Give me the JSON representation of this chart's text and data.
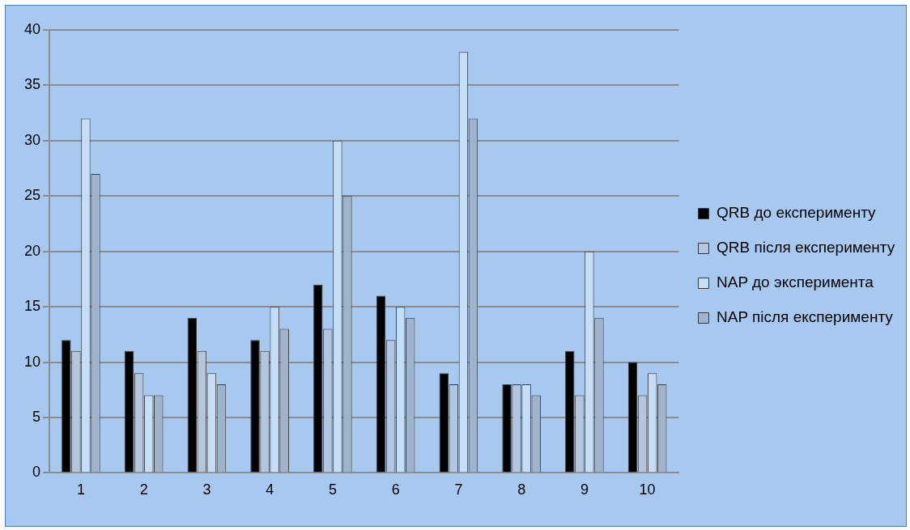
{
  "chart_data": {
    "type": "bar",
    "categories": [
      "1",
      "2",
      "3",
      "4",
      "5",
      "6",
      "7",
      "8",
      "9",
      "10"
    ],
    "series": [
      {
        "name": "QRB до експерименту",
        "color": "#000000",
        "values": [
          12,
          11,
          14,
          12,
          17,
          16,
          9,
          8,
          11,
          10
        ]
      },
      {
        "name": "QRB після експерименту",
        "color": "#b2c6de",
        "values": [
          11,
          9,
          11,
          11,
          13,
          12,
          8,
          8,
          7,
          7
        ]
      },
      {
        "name": "NAP до эксперимента",
        "color": "#c6ddf6",
        "values": [
          32,
          7,
          9,
          15,
          30,
          15,
          38,
          8,
          20,
          9
        ]
      },
      {
        "name": "NAP після експерименту",
        "color": "#9fb3cb",
        "values": [
          27,
          7,
          8,
          13,
          25,
          14,
          32,
          7,
          14,
          8
        ]
      }
    ],
    "ylim": [
      0,
      40
    ],
    "yticks": [
      0,
      5,
      10,
      15,
      20,
      25,
      30,
      35,
      40
    ],
    "grid": "y",
    "legend": "right"
  }
}
